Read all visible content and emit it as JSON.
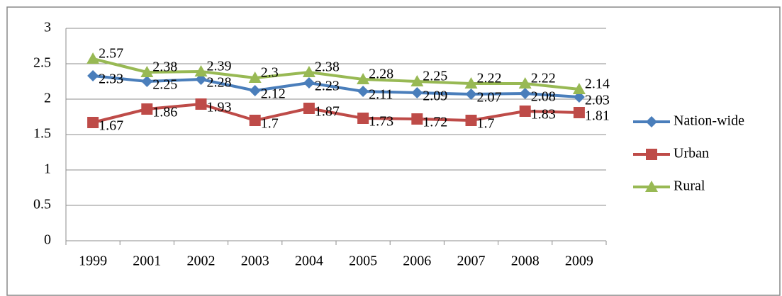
{
  "chart_data": {
    "type": "line",
    "categories": [
      "1999",
      "2001",
      "2002",
      "2003",
      "2004",
      "2005",
      "2006",
      "2007",
      "2008",
      "2009"
    ],
    "series": [
      {
        "name": "Nation-wide",
        "color": "#4a7ebb",
        "marker": "diamond",
        "values": [
          2.33,
          2.25,
          2.28,
          2.12,
          2.23,
          2.11,
          2.09,
          2.07,
          2.08,
          2.03
        ]
      },
      {
        "name": "Urban",
        "color": "#be4b48",
        "marker": "square",
        "values": [
          1.67,
          1.86,
          1.93,
          1.7,
          1.87,
          1.73,
          1.72,
          1.7,
          1.83,
          1.81
        ]
      },
      {
        "name": "Rural",
        "color": "#98b954",
        "marker": "triangle",
        "values": [
          2.57,
          2.38,
          2.39,
          2.3,
          2.38,
          2.28,
          2.25,
          2.22,
          2.22,
          2.14
        ]
      }
    ],
    "ylim": [
      0,
      3
    ],
    "yticks": [
      0,
      0.5,
      1,
      1.5,
      2,
      2.5,
      3
    ],
    "grid": true,
    "legend": "right",
    "data_labels": true
  }
}
